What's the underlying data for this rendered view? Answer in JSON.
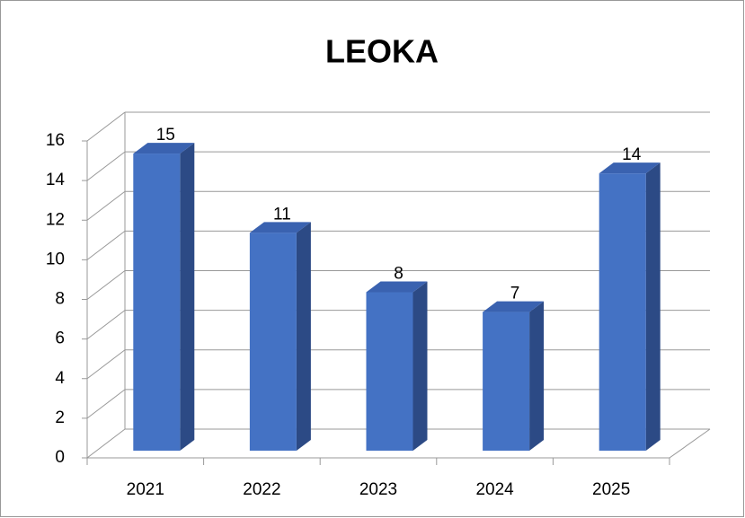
{
  "chart_data": {
    "type": "bar3d",
    "title": "LEOKA",
    "categories": [
      "2021",
      "2022",
      "2023",
      "2024",
      "2025"
    ],
    "values": [
      15,
      11,
      8,
      7,
      14
    ],
    "color": "#4472c4",
    "ylim": [
      0,
      16
    ],
    "yticks": [
      0,
      2,
      4,
      6,
      8,
      10,
      12,
      14,
      16
    ],
    "grid": true
  }
}
